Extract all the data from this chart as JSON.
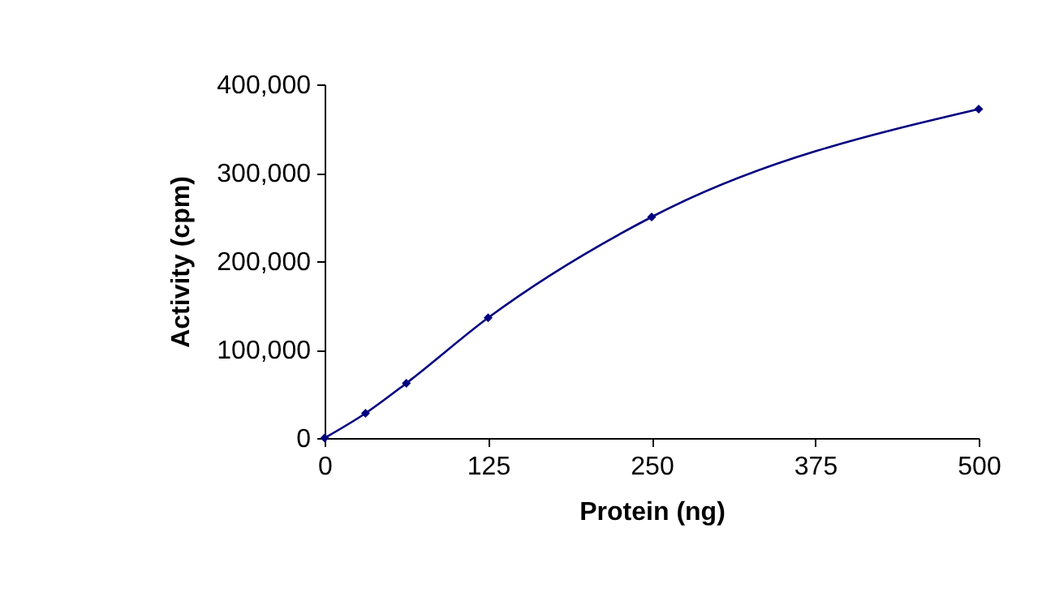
{
  "chart_data": {
    "type": "line",
    "xlabel": "Protein (ng)",
    "ylabel": "Activity (cpm)",
    "x": [
      0,
      31.25,
      62.5,
      125,
      250,
      500
    ],
    "series": [
      {
        "color": "#000080",
        "values": [
          0,
          28000,
          62000,
          136000,
          250000,
          372000
        ]
      }
    ],
    "xlim": [
      0,
      500
    ],
    "xticks": [
      0,
      125,
      250,
      375,
      500
    ],
    "ylim": [
      0,
      400000
    ],
    "yticks": [
      0,
      {
        "value": 100000,
        "label": "100,000"
      },
      {
        "value": 200000,
        "label": "200,000"
      },
      {
        "value": 300000,
        "label": "300,000"
      },
      {
        "value": 400000,
        "label": "400,000"
      }
    ],
    "grid": false,
    "marker": "diamond",
    "line_style": "solid"
  }
}
